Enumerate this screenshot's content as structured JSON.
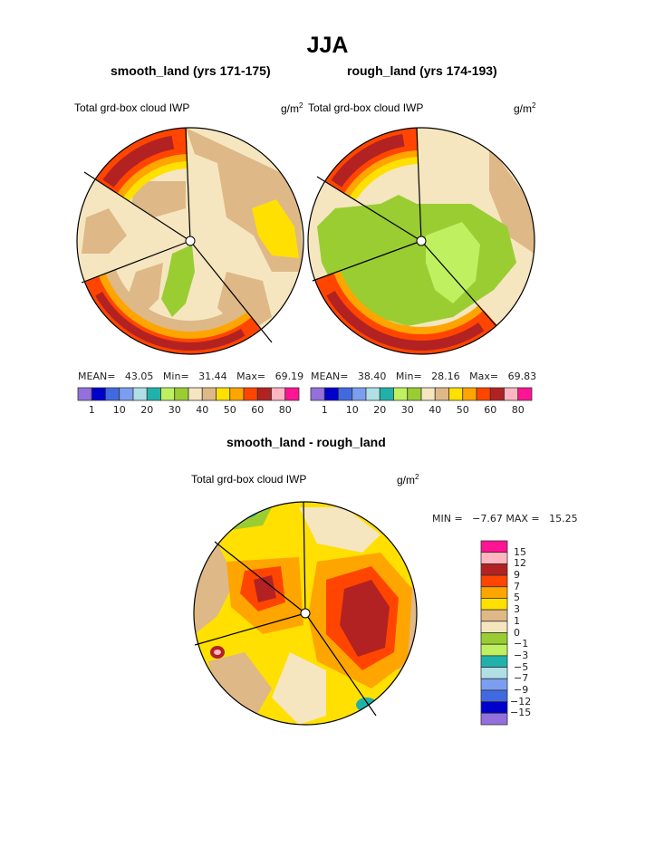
{
  "title": "JJA",
  "colors": [
    "#9370DB",
    "#0000CD",
    "#4169E1",
    "#7B9EF0",
    "#B0E0E6",
    "#20B2AA",
    "#BFF060",
    "#9ACD32",
    "#F5E6C0",
    "#DEB887",
    "#FFE000",
    "#FFA500",
    "#FF4500",
    "#B22222",
    "#FFB6C1",
    "#FF1493"
  ],
  "chart_data": [
    {
      "type": "heatmap",
      "subtitle": "smooth_land (yrs 171-175)",
      "variable": "Total grd-box cloud IWP",
      "units": "g/m",
      "units_exp": "2",
      "stats": {
        "mean_label": "MEAN=",
        "mean": "43.05",
        "min_label": "Min=",
        "min": "31.44",
        "max_label": "Max=",
        "max": "69.19"
      },
      "colorbar_labels": [
        "1",
        "10",
        "20",
        "30",
        "40",
        "50",
        "60",
        "80"
      ]
    },
    {
      "type": "heatmap",
      "subtitle": "rough_land (yrs 174-193)",
      "variable": "Total grd-box cloud IWP",
      "units": "g/m",
      "units_exp": "2",
      "stats": {
        "mean_label": "MEAN=",
        "mean": "38.40",
        "min_label": "Min=",
        "min": "28.16",
        "max_label": "Max=",
        "max": "69.83"
      },
      "colorbar_labels": [
        "1",
        "10",
        "20",
        "30",
        "40",
        "50",
        "60",
        "80"
      ]
    },
    {
      "type": "heatmap",
      "subtitle": "smooth_land - rough_land",
      "variable": "Total grd-box cloud IWP",
      "units": "g/m",
      "units_exp": "2",
      "stats": {
        "text": "MIN =   −7.67 MAX =   15.25",
        "min": -7.67,
        "max": 15.25
      },
      "colorbar_labels": [
        "15",
        "12",
        "9",
        "7",
        "5",
        "3",
        "1",
        "0",
        "−1",
        "−3",
        "−5",
        "−7",
        "−9",
        "−12",
        "−15"
      ]
    }
  ]
}
